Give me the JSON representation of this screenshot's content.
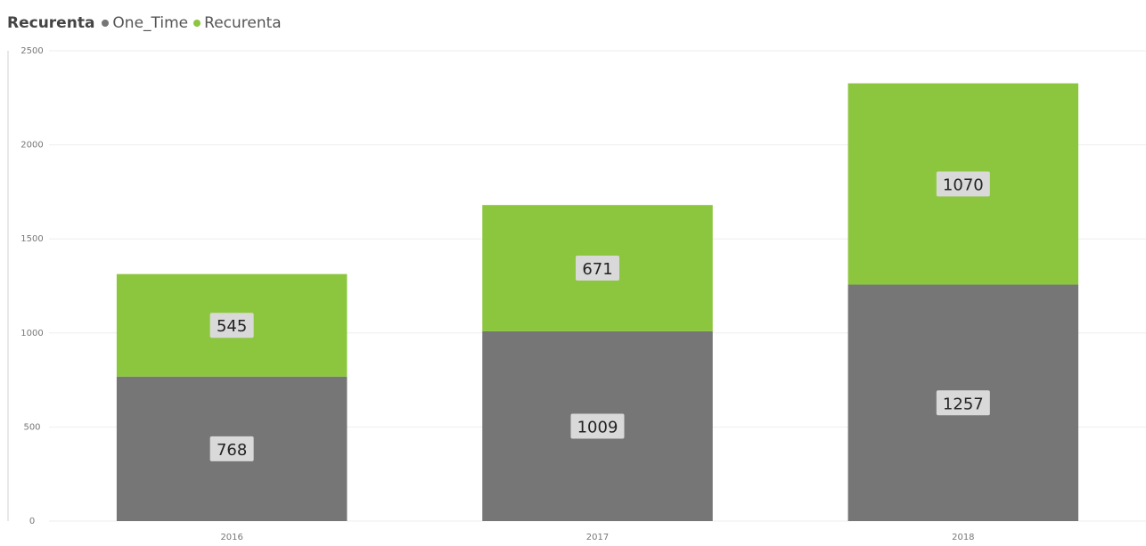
{
  "legend": {
    "title": "Recurenta",
    "items": [
      {
        "label": "One_Time",
        "color": "#767676"
      },
      {
        "label": "Recurenta",
        "color": "#8CC63F"
      }
    ]
  },
  "chart_data": {
    "type": "bar",
    "stacked": true,
    "title": "",
    "xlabel": "",
    "ylabel": "",
    "categories": [
      "2016",
      "2017",
      "2018"
    ],
    "series": [
      {
        "name": "One_Time",
        "color": "#767676",
        "values": [
          768,
          1009,
          1257
        ]
      },
      {
        "name": "Recurenta",
        "color": "#8CC63F",
        "values": [
          545,
          671,
          1070
        ]
      }
    ],
    "ylim": [
      0,
      2500
    ],
    "yticks": [
      0,
      500,
      1000,
      1500,
      2000,
      2500
    ],
    "grid": true,
    "legend_position": "top-left",
    "data_labels": true
  }
}
